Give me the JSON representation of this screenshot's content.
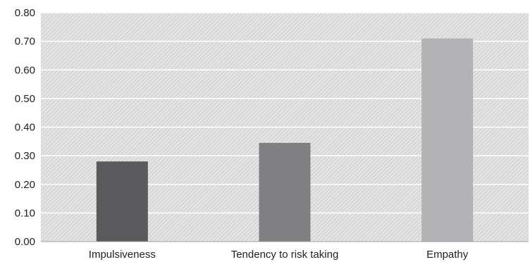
{
  "chart_data": {
    "type": "bar",
    "categories": [
      "Impulsiveness",
      "Tendency to risk taking",
      "Empathy"
    ],
    "values": [
      0.28,
      0.345,
      0.71
    ],
    "bar_colors": [
      "#5a5a5c",
      "#808083",
      "#b3b3b5"
    ],
    "ylim": [
      0,
      0.8
    ],
    "yticks": [
      "0.00",
      "0.10",
      "0.20",
      "0.30",
      "0.40",
      "0.50",
      "0.60",
      "0.70",
      "0.80"
    ],
    "grid": true,
    "background": "hatched-gray"
  }
}
